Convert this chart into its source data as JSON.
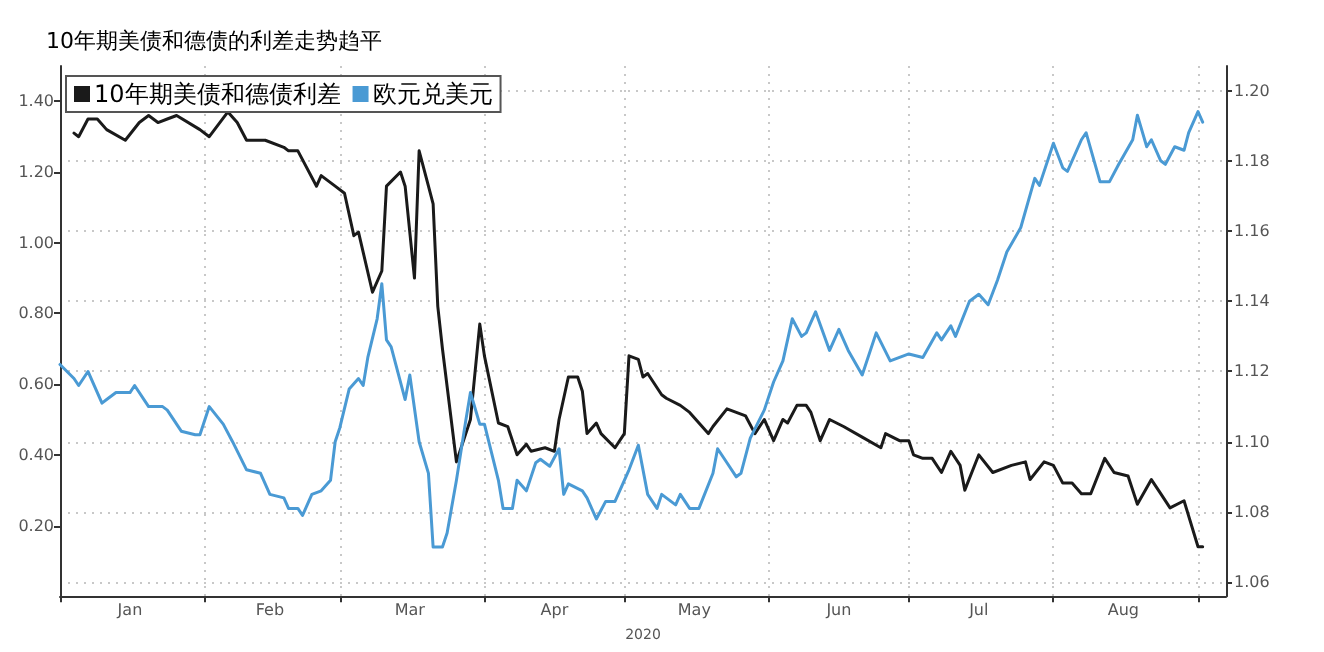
{
  "chart_data": {
    "type": "line",
    "title": "10年期美债和德债的利差走势趋平",
    "xlabel": "2020",
    "xlim": [
      "2020-01-01",
      "2020-09-07"
    ],
    "xticks": [
      {
        "value": "2020-01-01",
        "label": null
      },
      {
        "value": "2020-01-16",
        "label": "Jan"
      },
      {
        "value": "2020-02-01",
        "label": null
      },
      {
        "value": "2020-02-15",
        "label": "Feb"
      },
      {
        "value": "2020-03-01",
        "label": null
      },
      {
        "value": "2020-03-16",
        "label": "Mar"
      },
      {
        "value": "2020-04-01",
        "label": null
      },
      {
        "value": "2020-04-16",
        "label": "Apr"
      },
      {
        "value": "2020-05-01",
        "label": null
      },
      {
        "value": "2020-05-16",
        "label": "May"
      },
      {
        "value": "2020-06-01",
        "label": null
      },
      {
        "value": "2020-06-16",
        "label": "Jun"
      },
      {
        "value": "2020-07-01",
        "label": null
      },
      {
        "value": "2020-07-16",
        "label": "Jul"
      },
      {
        "value": "2020-08-01",
        "label": null
      },
      {
        "value": "2020-08-16",
        "label": "Aug"
      },
      {
        "value": "2020-09-01",
        "label": null
      }
    ],
    "ylim": [
      0,
      1.5
    ],
    "yticks": [
      {
        "value": 0.2,
        "label": "0.20"
      },
      {
        "value": 0.4,
        "label": "0.40"
      },
      {
        "value": 0.6,
        "label": "0.60"
      },
      {
        "value": 0.8,
        "label": "0.80"
      },
      {
        "value": 1.0,
        "label": "1.00"
      },
      {
        "value": 1.2,
        "label": "1.20"
      },
      {
        "value": 1.4,
        "label": "1.40"
      }
    ],
    "y2lim": [
      1.056,
      1.207
    ],
    "y2ticks": [
      {
        "value": 1.06,
        "label": "1.06"
      },
      {
        "value": 1.08,
        "label": "1.08"
      },
      {
        "value": 1.1,
        "label": "1.10"
      },
      {
        "value": 1.12,
        "label": "1.12"
      },
      {
        "value": 1.14,
        "label": "1.14"
      },
      {
        "value": 1.16,
        "label": "1.16"
      },
      {
        "value": 1.18,
        "label": "1.18"
      },
      {
        "value": 1.2,
        "label": "1.20"
      }
    ],
    "grid": true,
    "legend": "top left",
    "marker": "none",
    "line_style": "solid",
    "series": [
      {
        "name": "10年期美债和德债利差",
        "color": "#1a1a1a",
        "x": [
          "2020-01-04",
          "2020-01-05",
          "2020-01-07",
          "2020-01-09",
          "2020-01-11",
          "2020-01-15",
          "2020-01-18",
          "2020-01-20",
          "2020-01-22",
          "2020-01-24",
          "2020-01-26",
          "2020-01-31",
          "2020-02-02",
          "2020-02-06",
          "2020-02-08",
          "2020-02-10",
          "2020-02-14",
          "2020-02-18",
          "2020-02-19",
          "2020-02-21",
          "2020-02-25",
          "2020-02-26",
          "2020-02-29",
          "2020-03-02",
          "2020-03-04",
          "2020-03-05",
          "2020-03-08",
          "2020-03-10",
          "2020-03-11",
          "2020-03-14",
          "2020-03-15",
          "2020-03-17",
          "2020-03-18",
          "2020-03-20",
          "2020-03-21",
          "2020-03-22",
          "2020-03-23",
          "2020-03-26",
          "2020-03-29",
          "2020-03-31",
          "2020-04-01",
          "2020-04-04",
          "2020-04-06",
          "2020-04-08",
          "2020-04-10",
          "2020-04-11",
          "2020-04-14",
          "2020-04-16",
          "2020-04-17",
          "2020-04-19",
          "2020-04-21",
          "2020-04-22",
          "2020-04-23",
          "2020-04-25",
          "2020-04-26",
          "2020-04-29",
          "2020-05-01",
          "2020-05-02",
          "2020-05-04",
          "2020-05-05",
          "2020-05-06",
          "2020-05-09",
          "2020-05-10",
          "2020-05-13",
          "2020-05-15",
          "2020-05-19",
          "2020-05-20",
          "2020-05-23",
          "2020-05-27",
          "2020-05-29",
          "2020-05-31",
          "2020-06-02",
          "2020-06-04",
          "2020-06-05",
          "2020-06-07",
          "2020-06-09",
          "2020-06-10",
          "2020-06-12",
          "2020-06-14",
          "2020-06-17",
          "2020-06-21",
          "2020-06-25",
          "2020-06-26",
          "2020-06-29",
          "2020-07-01",
          "2020-07-02",
          "2020-07-04",
          "2020-07-06",
          "2020-07-08",
          "2020-07-10",
          "2020-07-12",
          "2020-07-13",
          "2020-07-16",
          "2020-07-19",
          "2020-07-23",
          "2020-07-26",
          "2020-07-27",
          "2020-07-30",
          "2020-08-01",
          "2020-08-03",
          "2020-08-05",
          "2020-08-07",
          "2020-08-09",
          "2020-08-12",
          "2020-08-14",
          "2020-08-17",
          "2020-08-19",
          "2020-08-22",
          "2020-08-24",
          "2020-08-26",
          "2020-08-29",
          "2020-09-01",
          "2020-09-02"
        ],
        "values": [
          1.31,
          1.3,
          1.35,
          1.35,
          1.32,
          1.29,
          1.34,
          1.36,
          1.34,
          1.35,
          1.36,
          1.32,
          1.3,
          1.37,
          1.34,
          1.29,
          1.29,
          1.27,
          1.26,
          1.26,
          1.16,
          1.19,
          1.16,
          1.14,
          1.02,
          1.03,
          0.86,
          0.92,
          1.16,
          1.2,
          1.16,
          0.9,
          1.26,
          1.16,
          1.11,
          0.82,
          0.7,
          0.38,
          0.5,
          0.77,
          0.68,
          0.49,
          0.48,
          0.4,
          0.43,
          0.41,
          0.42,
          0.41,
          0.5,
          0.62,
          0.62,
          0.58,
          0.46,
          0.49,
          0.46,
          0.42,
          0.46,
          0.68,
          0.67,
          0.62,
          0.63,
          0.57,
          0.56,
          0.54,
          0.52,
          0.46,
          0.48,
          0.53,
          0.51,
          0.46,
          0.5,
          0.44,
          0.5,
          0.49,
          0.54,
          0.54,
          0.52,
          0.44,
          0.5,
          0.48,
          0.45,
          0.42,
          0.46,
          0.44,
          0.44,
          0.4,
          0.39,
          0.39,
          0.35,
          0.41,
          0.37,
          0.3,
          0.4,
          0.35,
          0.37,
          0.38,
          0.33,
          0.38,
          0.37,
          0.32,
          0.32,
          0.29,
          0.29,
          0.39,
          0.35,
          0.34,
          0.26,
          0.33,
          0.29,
          0.25,
          0.27,
          0.14,
          0.14
        ]
      },
      {
        "name": "欧元兑美元",
        "color": "#4a9ad4",
        "axis": "y2",
        "x": [
          "2020-01-01",
          "2020-01-04",
          "2020-01-05",
          "2020-01-07",
          "2020-01-10",
          "2020-01-11",
          "2020-01-13",
          "2020-01-16",
          "2020-01-17",
          "2020-01-20",
          "2020-01-23",
          "2020-01-24",
          "2020-01-27",
          "2020-01-30",
          "2020-01-31",
          "2020-02-02",
          "2020-02-05",
          "2020-02-07",
          "2020-02-10",
          "2020-02-13",
          "2020-02-15",
          "2020-02-18",
          "2020-02-19",
          "2020-02-21",
          "2020-02-22",
          "2020-02-24",
          "2020-02-26",
          "2020-02-28",
          "2020-02-29",
          "2020-03-01",
          "2020-03-03",
          "2020-03-05",
          "2020-03-06",
          "2020-03-07",
          "2020-03-09",
          "2020-03-10",
          "2020-03-11",
          "2020-03-12",
          "2020-03-15",
          "2020-03-16",
          "2020-03-18",
          "2020-03-20",
          "2020-03-21",
          "2020-03-23",
          "2020-03-24",
          "2020-03-26",
          "2020-03-28",
          "2020-03-29",
          "2020-03-31",
          "2020-04-01",
          "2020-04-04",
          "2020-04-05",
          "2020-04-07",
          "2020-04-08",
          "2020-04-10",
          "2020-04-12",
          "2020-04-13",
          "2020-04-15",
          "2020-04-17",
          "2020-04-18",
          "2020-04-19",
          "2020-04-22",
          "2020-04-23",
          "2020-04-25",
          "2020-04-27",
          "2020-04-29",
          "2020-05-02",
          "2020-05-04",
          "2020-05-06",
          "2020-05-08",
          "2020-05-09",
          "2020-05-12",
          "2020-05-13",
          "2020-05-15",
          "2020-05-17",
          "2020-05-20",
          "2020-05-21",
          "2020-05-23",
          "2020-05-25",
          "2020-05-26",
          "2020-05-28",
          "2020-05-31",
          "2020-06-02",
          "2020-06-04",
          "2020-06-06",
          "2020-06-08",
          "2020-06-09",
          "2020-06-11",
          "2020-06-14",
          "2020-06-16",
          "2020-06-18",
          "2020-06-21",
          "2020-06-24",
          "2020-06-27",
          "2020-06-29",
          "2020-07-01",
          "2020-07-04",
          "2020-07-07",
          "2020-07-08",
          "2020-07-10",
          "2020-07-11",
          "2020-07-14",
          "2020-07-16",
          "2020-07-18",
          "2020-07-20",
          "2020-07-22",
          "2020-07-25",
          "2020-07-28",
          "2020-07-29",
          "2020-08-01",
          "2020-08-03",
          "2020-08-04",
          "2020-08-07",
          "2020-08-08",
          "2020-08-11",
          "2020-08-13",
          "2020-08-15",
          "2020-08-18",
          "2020-08-19",
          "2020-08-21",
          "2020-08-22",
          "2020-08-24",
          "2020-08-25",
          "2020-08-27",
          "2020-08-29",
          "2020-08-30",
          "2020-09-01",
          "2020-09-02"
        ],
        "values": [
          1.122,
          1.118,
          1.116,
          1.12,
          1.111,
          1.112,
          1.114,
          1.114,
          1.116,
          1.11,
          1.11,
          1.109,
          1.103,
          1.102,
          1.102,
          1.11,
          1.105,
          1.1,
          1.092,
          1.091,
          1.085,
          1.084,
          1.081,
          1.081,
          1.079,
          1.085,
          1.086,
          1.089,
          1.1,
          1.104,
          1.115,
          1.118,
          1.116,
          1.124,
          1.135,
          1.145,
          1.129,
          1.127,
          1.112,
          1.119,
          1.1,
          1.091,
          1.07,
          1.07,
          1.074,
          1.089,
          1.106,
          1.114,
          1.105,
          1.105,
          1.089,
          1.081,
          1.081,
          1.089,
          1.086,
          1.094,
          1.095,
          1.093,
          1.098,
          1.085,
          1.088,
          1.086,
          1.084,
          1.078,
          1.083,
          1.083,
          1.092,
          1.099,
          1.085,
          1.081,
          1.085,
          1.082,
          1.085,
          1.081,
          1.081,
          1.091,
          1.098,
          1.094,
          1.09,
          1.091,
          1.101,
          1.109,
          1.117,
          1.123,
          1.135,
          1.13,
          1.131,
          1.137,
          1.126,
          1.132,
          1.126,
          1.119,
          1.131,
          1.123,
          1.124,
          1.125,
          1.124,
          1.131,
          1.129,
          1.133,
          1.13,
          1.14,
          1.142,
          1.139,
          1.146,
          1.154,
          1.161,
          1.175,
          1.173,
          1.185,
          1.178,
          1.177,
          1.186,
          1.188,
          1.174,
          1.174,
          1.179,
          1.186,
          1.193,
          1.184,
          1.186,
          1.18,
          1.179,
          1.184,
          1.183,
          1.188,
          1.194,
          1.191
        ]
      }
    ]
  }
}
